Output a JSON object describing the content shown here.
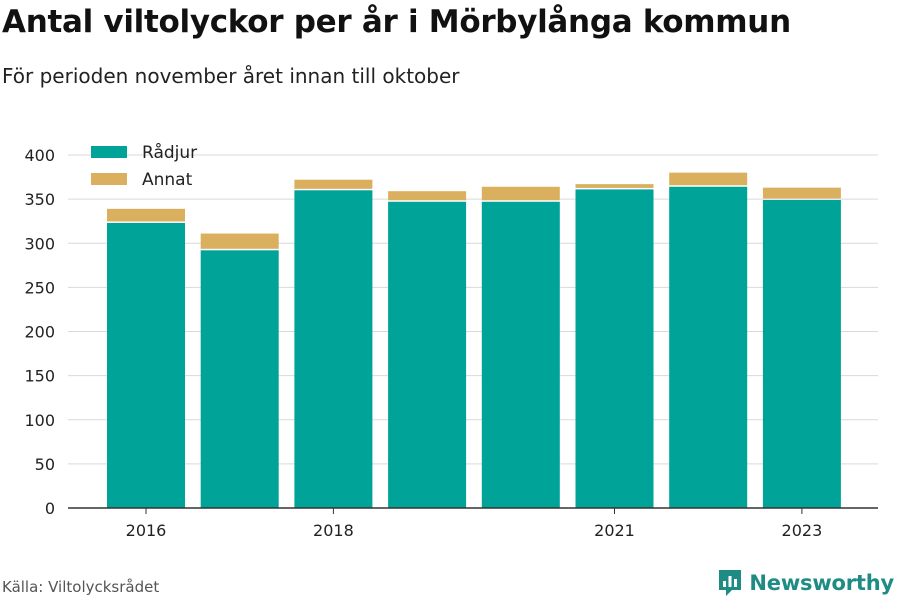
{
  "title": "Antal viltolyckor per år i Mörbylånga kommun",
  "subtitle": "För perioden november året innan till oktober",
  "source": "Källa: Viltolycksrådet",
  "brand": "Newsworthy",
  "colors": {
    "radjur": "#00a398",
    "annat": "#dab05f",
    "grid": "#d9d9d9",
    "brand": "#1e8c84"
  },
  "chart_data": {
    "type": "bar",
    "stacked": true,
    "categories": [
      "2016",
      "2017",
      "2018",
      "2019",
      "2020",
      "2021",
      "2022",
      "2023"
    ],
    "x_tick_labels": [
      "2016",
      "",
      "2018",
      "",
      "",
      "2021",
      "",
      "2023"
    ],
    "series": [
      {
        "name": "Rådjur",
        "values": [
          323,
          292,
          360,
          347,
          347,
          361,
          364,
          349
        ]
      },
      {
        "name": "Annat",
        "values": [
          16,
          19,
          12,
          12,
          17,
          6,
          16,
          14
        ]
      }
    ],
    "y_ticks": [
      "0",
      "50",
      "100",
      "150",
      "200",
      "250",
      "300",
      "350",
      "400"
    ],
    "ylim": [
      0,
      400
    ],
    "grid": true,
    "legend_position": "top-left"
  }
}
